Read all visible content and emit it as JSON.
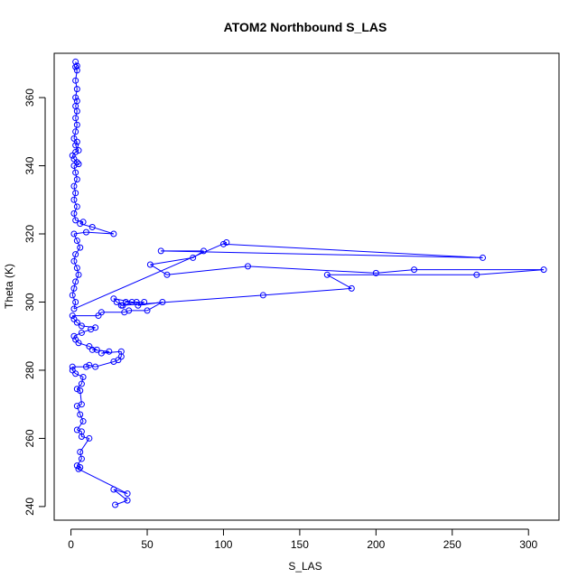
{
  "chart_data": {
    "type": "line",
    "title": "ATOM2 Northbound S_LAS",
    "xlabel": "S_LAS",
    "ylabel": "Theta (K)",
    "xlim": [
      -11,
      320
    ],
    "ylim": [
      236,
      373
    ],
    "x_ticks": [
      0,
      50,
      100,
      150,
      200,
      250,
      300
    ],
    "y_ticks": [
      240,
      260,
      280,
      300,
      320,
      340,
      360
    ],
    "grid": false,
    "series_color": "#0000ff",
    "markers": "open circles connected by lines",
    "series": [
      {
        "points": [
          [
            29,
            240.5
          ],
          [
            37,
            241.8
          ],
          [
            28,
            245
          ],
          [
            37,
            243.8
          ],
          [
            5,
            251
          ],
          [
            6,
            251.5
          ],
          [
            4,
            252
          ],
          [
            7,
            254
          ],
          [
            6,
            256
          ],
          [
            12,
            260
          ],
          [
            7,
            260.5
          ],
          [
            7,
            262
          ],
          [
            4,
            262.5
          ],
          [
            8,
            265
          ],
          [
            6,
            267
          ],
          [
            4,
            269.5
          ],
          [
            7,
            270
          ],
          [
            6,
            274
          ],
          [
            4,
            274.5
          ],
          [
            7,
            276
          ],
          [
            8,
            278
          ],
          [
            3,
            279
          ],
          [
            1,
            280
          ],
          [
            1,
            281
          ],
          [
            10,
            281
          ],
          [
            12,
            281.5
          ],
          [
            16,
            281
          ],
          [
            28,
            282.5
          ],
          [
            31,
            283
          ],
          [
            33,
            284
          ],
          [
            33,
            285.5
          ],
          [
            20,
            285
          ],
          [
            25,
            285.5
          ],
          [
            14,
            286
          ],
          [
            17,
            286
          ],
          [
            12,
            287
          ],
          [
            5,
            288
          ],
          [
            3,
            289
          ],
          [
            2,
            290
          ],
          [
            7,
            291
          ],
          [
            13,
            292
          ],
          [
            16,
            292.5
          ],
          [
            7,
            293
          ],
          [
            4,
            294
          ],
          [
            2,
            295
          ],
          [
            1,
            296
          ],
          [
            18,
            296
          ],
          [
            20,
            297
          ],
          [
            35,
            297
          ],
          [
            38,
            297.5
          ],
          [
            50,
            297.5
          ],
          [
            60,
            300
          ],
          [
            44,
            299
          ],
          [
            48,
            300
          ],
          [
            36,
            300
          ],
          [
            34,
            299
          ],
          [
            30,
            300
          ],
          [
            28,
            301
          ],
          [
            40,
            300
          ],
          [
            43,
            300
          ],
          [
            33,
            299
          ],
          [
            126,
            302
          ],
          [
            184,
            304
          ],
          [
            168,
            308
          ],
          [
            266,
            308
          ],
          [
            310,
            309.5
          ],
          [
            225,
            309.5
          ],
          [
            200,
            308.5
          ],
          [
            116,
            310.5
          ],
          [
            63,
            308
          ],
          [
            52,
            311
          ],
          [
            80,
            313
          ],
          [
            87,
            315
          ],
          [
            59,
            315
          ],
          [
            270,
            313
          ],
          [
            100,
            317
          ],
          [
            102,
            317.5
          ],
          [
            2,
            298
          ],
          [
            3,
            300
          ],
          [
            1,
            302
          ],
          [
            2,
            304
          ],
          [
            3,
            306
          ],
          [
            5,
            308
          ],
          [
            4,
            310
          ],
          [
            2,
            312
          ],
          [
            3,
            314
          ],
          [
            6,
            316
          ],
          [
            4,
            318
          ],
          [
            2,
            320
          ],
          [
            10,
            320.5
          ],
          [
            28,
            320
          ],
          [
            14,
            322
          ],
          [
            6,
            323
          ],
          [
            8,
            323.5
          ],
          [
            3,
            324
          ],
          [
            2,
            326
          ],
          [
            4,
            328
          ],
          [
            2,
            330
          ],
          [
            3,
            332
          ],
          [
            2,
            334
          ],
          [
            4,
            336
          ],
          [
            3,
            338
          ],
          [
            2,
            340
          ],
          [
            5,
            340.5
          ],
          [
            4,
            341
          ],
          [
            2,
            342
          ],
          [
            1,
            343
          ],
          [
            3,
            344
          ],
          [
            5,
            344.5
          ],
          [
            3,
            346
          ],
          [
            4,
            347
          ],
          [
            2,
            348
          ],
          [
            3,
            350
          ],
          [
            4,
            352
          ],
          [
            3,
            354
          ],
          [
            4,
            356
          ],
          [
            3,
            357.5
          ],
          [
            4,
            359
          ],
          [
            3,
            360
          ],
          [
            4,
            362.5
          ],
          [
            3,
            365
          ],
          [
            4,
            368
          ],
          [
            3,
            369
          ],
          [
            4,
            369.3
          ],
          [
            3,
            370.5
          ]
        ]
      }
    ]
  }
}
